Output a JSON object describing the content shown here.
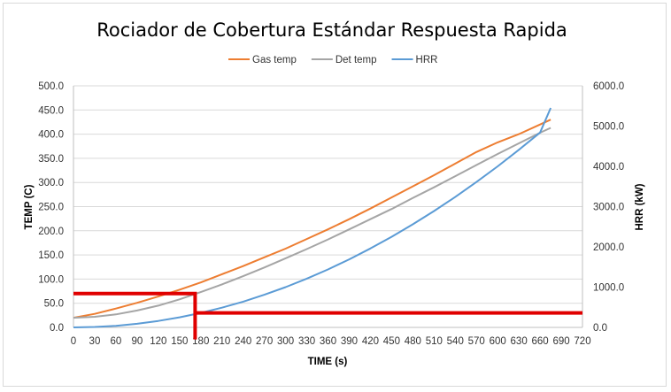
{
  "chart_data": {
    "type": "line",
    "title": "Rociador de Cobertura Estándar Respuesta Rapida",
    "xlabel": "TIME (s)",
    "ylabel": "TEMP (C)",
    "y2label": "HRR (kW)",
    "xlim": [
      0,
      720
    ],
    "ylim": [
      0,
      500
    ],
    "y2lim": [
      0,
      6000
    ],
    "x_ticks": [
      0,
      30,
      60,
      90,
      120,
      150,
      180,
      210,
      240,
      270,
      300,
      330,
      360,
      390,
      420,
      450,
      480,
      510,
      540,
      570,
      600,
      630,
      660,
      690,
      720
    ],
    "x_tick_labels": [
      "0",
      "30",
      "60",
      "90",
      "120",
      "150",
      "180",
      "210",
      "240",
      "270",
      "300",
      "330",
      "360",
      "390",
      "420",
      "450",
      "480",
      "510",
      "540",
      "570",
      "600",
      "630",
      "660",
      "690",
      "720"
    ],
    "y_ticks": [
      0,
      50,
      100,
      150,
      200,
      250,
      300,
      350,
      400,
      450,
      500
    ],
    "y_tick_labels": [
      "0.0",
      "50.0",
      "100.0",
      "150.0",
      "200.0",
      "250.0",
      "300.0",
      "350.0",
      "400.0",
      "450.0",
      "500.0"
    ],
    "y2_ticks": [
      0,
      1000,
      2000,
      3000,
      4000,
      5000,
      6000
    ],
    "y2_tick_labels": [
      "0.0",
      "1000.0",
      "2000.0",
      "3000.0",
      "4000.0",
      "5000.0",
      "6000.0"
    ],
    "grid": "horizontal",
    "legend": "top",
    "series": [
      {
        "name": "Gas temp",
        "axis": "left",
        "color": "#ED7D31",
        "x": [
          0,
          30,
          60,
          90,
          120,
          150,
          180,
          210,
          240,
          270,
          300,
          330,
          360,
          390,
          420,
          450,
          480,
          510,
          540,
          570,
          600,
          630,
          660,
          675
        ],
        "values": [
          20,
          28,
          39,
          51,
          64,
          78,
          93,
          110,
          127,
          145,
          163,
          183,
          203,
          224,
          246,
          269,
          292,
          315,
          339,
          363,
          383,
          400,
          420,
          430
        ]
      },
      {
        "name": "Det temp",
        "axis": "left",
        "color": "#A5A5A5",
        "x": [
          0,
          30,
          60,
          90,
          120,
          150,
          180,
          210,
          240,
          270,
          300,
          330,
          360,
          390,
          420,
          450,
          480,
          510,
          540,
          570,
          600,
          630,
          660,
          675
        ],
        "values": [
          20,
          22,
          27,
          35,
          45,
          58,
          73,
          89,
          106,
          124,
          143,
          162,
          182,
          203,
          224,
          245,
          268,
          290,
          313,
          336,
          359,
          381,
          403,
          413
        ]
      },
      {
        "name": "HRR",
        "axis": "right",
        "color": "#5B9BD5",
        "x": [
          0,
          30,
          60,
          90,
          120,
          150,
          180,
          210,
          240,
          270,
          300,
          330,
          360,
          390,
          420,
          450,
          480,
          510,
          540,
          570,
          600,
          630,
          660,
          675
        ],
        "values": [
          0,
          10,
          40,
          90,
          160,
          250,
          360,
          490,
          640,
          810,
          1000,
          1210,
          1440,
          1690,
          1960,
          2250,
          2560,
          2890,
          3240,
          3610,
          4000,
          4410,
          4840,
          5450
        ]
      }
    ],
    "annotations": [
      {
        "name": "temp-threshold-line",
        "color": "#E00000",
        "axis": "left",
        "x": [
          0,
          172,
          172
        ],
        "values": [
          70,
          70,
          -25
        ]
      },
      {
        "name": "hrr-threshold-line",
        "color": "#E00000",
        "axis": "right",
        "x": [
          172,
          720
        ],
        "values": [
          360,
          360
        ]
      }
    ]
  }
}
